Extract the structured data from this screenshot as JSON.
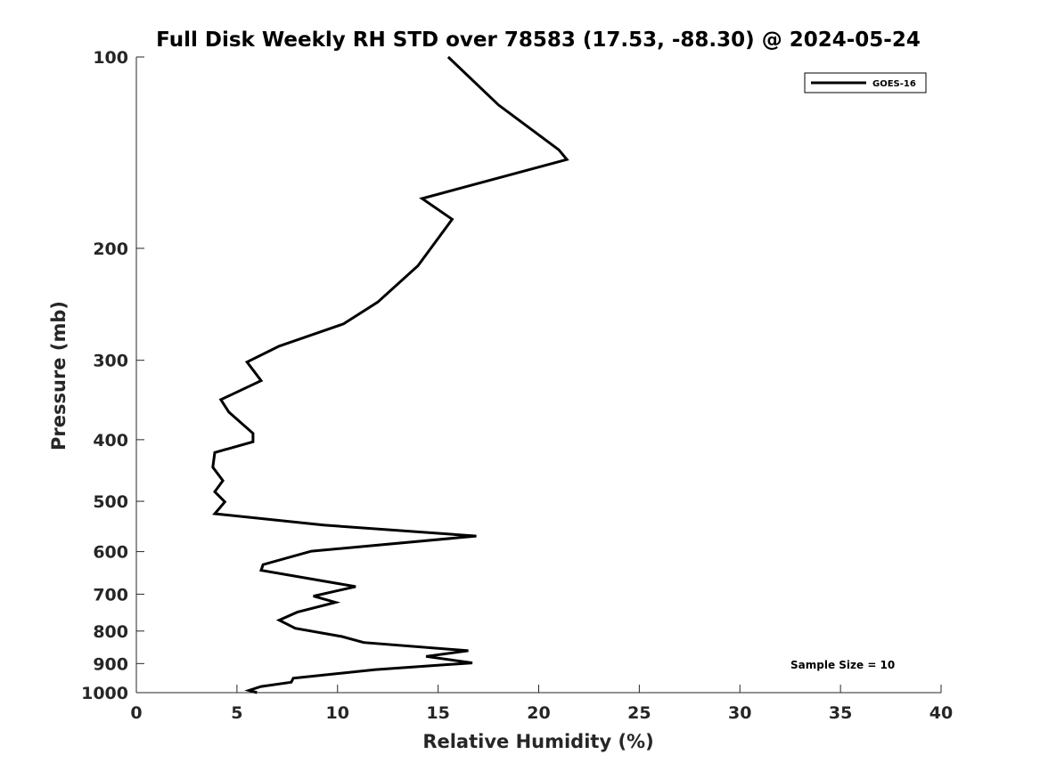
{
  "chart_data": {
    "type": "line",
    "title": "Full Disk Weekly RH STD over 78583 (17.53, -88.30) @ 2024-05-24",
    "xlabel": "Relative Humidity (%)",
    "ylabel": "Pressure (mb)",
    "xlim": [
      0,
      40
    ],
    "ylim": [
      100,
      1000
    ],
    "yscale": "log",
    "yreversed": true,
    "xticks": [
      0,
      5,
      10,
      15,
      20,
      25,
      30,
      35,
      40
    ],
    "yticks": [
      100,
      200,
      300,
      400,
      500,
      600,
      700,
      800,
      900,
      1000
    ],
    "grid": false,
    "legend_position": "top-right",
    "series": [
      {
        "name": "GOES-16",
        "color": "#000000",
        "x": [
          15.5,
          18.0,
          21.0,
          21.4,
          14.2,
          15.7,
          14.0,
          12.0,
          10.3,
          7.1,
          5.5,
          6.2,
          4.2,
          4.6,
          5.8,
          5.8,
          3.9,
          3.8,
          4.3,
          3.9,
          4.4,
          3.9,
          9.3,
          16.9,
          8.7,
          6.3,
          6.2,
          10.9,
          8.8,
          9.9,
          8.0,
          7.1,
          7.9,
          10.2,
          11.3,
          16.5,
          14.4,
          16.7,
          11.9,
          7.8,
          7.7,
          6.2,
          5.6,
          6.0
        ],
        "y": [
          100,
          119,
          140,
          145,
          167,
          180,
          213,
          243,
          263,
          285,
          302,
          323,
          346,
          362,
          391,
          403,
          419,
          442,
          464,
          483,
          501,
          523,
          545,
          567,
          599,
          629,
          642,
          681,
          705,
          721,
          747,
          769,
          792,
          816,
          834,
          859,
          877,
          898,
          920,
          949,
          963,
          978,
          992,
          1000
        ]
      }
    ],
    "annotation": "Sample Size = 10"
  }
}
